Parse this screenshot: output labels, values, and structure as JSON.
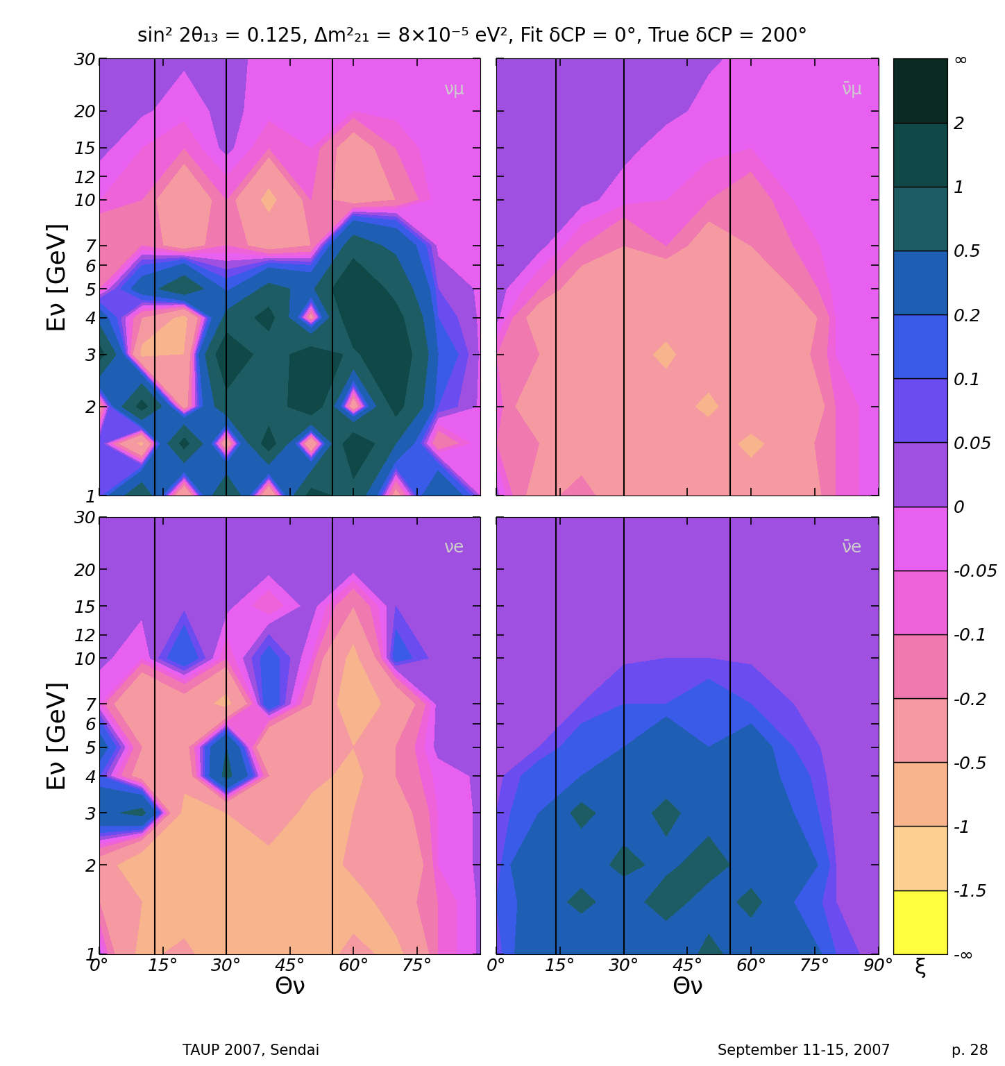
{
  "title": "sin² 2θ₁₃ = 0.125, Δm²₂₁ = 8×10⁻⁵ eV², Fit δCP = 0°, True δCP = 200°",
  "footer": {
    "left": "TAUP 2007, Sendai",
    "center": "September 11-15, 2007",
    "right": "p. 28"
  },
  "colorbar": {
    "label": "ξ",
    "levels": [
      -1.5,
      -1,
      -0.5,
      -0.2,
      -0.1,
      -0.05,
      0,
      0.05,
      0.1,
      0.2,
      0.5,
      1,
      2
    ],
    "end_labels": [
      "-∞",
      "∞"
    ],
    "colors": [
      "#ffff40",
      "#fbd090",
      "#f8b48c",
      "#f59aa0",
      "#f07ab0",
      "#ee64d8",
      "#e860f0",
      "#a050e0",
      "#6a4cf0",
      "#3a5ae8",
      "#1e5fb4",
      "#1e5c64",
      "#104848",
      "#0b2b22"
    ]
  },
  "chart_data": [
    {
      "type": "contour",
      "label": "νμ",
      "xlabel": null,
      "ylabel": "Eν [GeV]",
      "tick_labels": "y",
      "xlim": [
        0,
        90
      ],
      "ylim": [
        1,
        30
      ],
      "log": "y",
      "xticks": [
        {
          "value": 0,
          "label": "0°"
        },
        {
          "value": 15,
          "label": "15°"
        },
        {
          "value": 30,
          "label": "30°"
        },
        {
          "value": 45,
          "label": "45°"
        },
        {
          "value": 60,
          "label": "60°"
        },
        {
          "value": 75,
          "label": "75°"
        }
      ],
      "yticks": [
        1,
        2,
        3,
        4,
        5,
        6,
        7,
        10,
        12,
        15,
        20,
        30
      ],
      "vertical_lines": [
        13,
        30,
        55
      ],
      "x": [
        0,
        10,
        20,
        30,
        40,
        50,
        60,
        70,
        80,
        90
      ],
      "y": [
        1,
        1.5,
        2,
        3,
        4,
        5,
        7,
        10,
        15,
        20,
        30
      ],
      "cells": [
        [
          0.05,
          0.8,
          -0.5,
          1.0,
          -0.5,
          1.2,
          0.8,
          -0.3,
          0.5,
          -0.01
        ],
        [
          0.1,
          -0.6,
          1.2,
          -0.4,
          1.3,
          -0.5,
          1.5,
          0.5,
          -0.2,
          -0.01
        ],
        [
          -0.3,
          1.2,
          -0.3,
          0.8,
          0.6,
          1.5,
          -0.4,
          1.2,
          0.1,
          -0.01
        ],
        [
          1.2,
          -0.6,
          -0.5,
          1.5,
          0.7,
          1.3,
          0.9,
          1.5,
          0.2,
          -0.01
        ],
        [
          0.3,
          -0.2,
          -0.6,
          0.6,
          1.2,
          -0.3,
          1.5,
          1.2,
          0.1,
          -0.01
        ],
        [
          -0.1,
          0.3,
          0.8,
          0.15,
          0.6,
          0.4,
          1.6,
          0.8,
          0.05,
          -0.01
        ],
        [
          -0.2,
          -0.1,
          -0.3,
          -0.1,
          -0.3,
          -0.2,
          0.7,
          0.4,
          -0.02,
          -0.01
        ],
        [
          -0.05,
          -0.1,
          -0.4,
          -0.1,
          -0.6,
          -0.1,
          -0.3,
          -0.2,
          -0.02,
          -0.01
        ],
        [
          0.02,
          -0.05,
          -0.1,
          0.02,
          -0.1,
          -0.05,
          -0.3,
          -0.1,
          -0.01,
          -0.01
        ],
        [
          0.02,
          0.01,
          -0.03,
          0.02,
          -0.03,
          -0.02,
          -0.05,
          -0.03,
          -0.01,
          -0.01
        ],
        [
          0.02,
          0.02,
          0.01,
          0.02,
          -0.02,
          -0.02,
          -0.02,
          -0.01,
          -0.01,
          -0.01
        ]
      ]
    },
    {
      "type": "contour",
      "label": "ν̄μ",
      "xlabel": null,
      "ylabel": null,
      "tick_labels": false,
      "xlim": [
        0,
        90
      ],
      "ylim": [
        1,
        30
      ],
      "log": "y",
      "xticks": [
        {
          "value": 0,
          "label": "0°"
        },
        {
          "value": 15,
          "label": "15°"
        },
        {
          "value": 30,
          "label": "30°"
        },
        {
          "value": 45,
          "label": "45°"
        },
        {
          "value": 60,
          "label": "60°"
        },
        {
          "value": 75,
          "label": "75°"
        },
        {
          "value": 90,
          "label": "90°"
        }
      ],
      "yticks": [
        1,
        2,
        3,
        4,
        5,
        6,
        7,
        10,
        12,
        15,
        20,
        30
      ],
      "vertical_lines": [
        14,
        30,
        55
      ],
      "x": [
        0,
        10,
        20,
        30,
        40,
        50,
        60,
        70,
        80,
        90
      ],
      "y": [
        1,
        1.5,
        2,
        3,
        4,
        5,
        7,
        10,
        15,
        20,
        30
      ],
      "cells": [
        [
          0.02,
          -0.3,
          -0.1,
          -0.4,
          -0.2,
          -0.5,
          -0.3,
          -0.4,
          -0.1,
          -0.01
        ],
        [
          -0.1,
          -0.2,
          -0.4,
          -0.2,
          -0.5,
          -0.3,
          -0.6,
          -0.3,
          -0.1,
          -0.01
        ],
        [
          -0.05,
          -0.4,
          -0.2,
          -0.5,
          -0.3,
          -0.6,
          -0.2,
          -0.5,
          -0.1,
          -0.01
        ],
        [
          -0.1,
          -0.2,
          -0.5,
          -0.3,
          -0.6,
          -0.2,
          -0.5,
          -0.3,
          -0.05,
          -0.01
        ],
        [
          0.02,
          -0.3,
          -0.2,
          -0.4,
          -0.3,
          -0.5,
          -0.3,
          -0.4,
          -0.05,
          -0.01
        ],
        [
          0.03,
          -0.1,
          -0.3,
          -0.2,
          -0.4,
          -0.3,
          -0.4,
          -0.2,
          -0.03,
          -0.01
        ],
        [
          0.03,
          0.02,
          -0.1,
          -0.2,
          -0.1,
          -0.3,
          -0.2,
          -0.1,
          -0.02,
          -0.01
        ],
        [
          0.03,
          0.03,
          0.02,
          -0.03,
          -0.05,
          -0.1,
          -0.15,
          -0.05,
          -0.02,
          -0.01
        ],
        [
          0.03,
          0.03,
          0.02,
          0.02,
          -0.03,
          -0.03,
          -0.05,
          -0.03,
          -0.01,
          -0.01
        ],
        [
          0.03,
          0.03,
          0.02,
          0.02,
          0.02,
          -0.02,
          -0.03,
          -0.02,
          -0.01,
          -0.01
        ],
        [
          0.03,
          0.03,
          0.02,
          0.02,
          0.02,
          0.01,
          -0.02,
          -0.01,
          -0.01,
          -0.01
        ]
      ]
    },
    {
      "type": "contour",
      "label": "νe",
      "xlabel": "Θν",
      "ylabel": "Eν [GeV]",
      "tick_labels": true,
      "xlim": [
        0,
        90
      ],
      "ylim": [
        1,
        30
      ],
      "log": "y",
      "xticks": [
        {
          "value": 0,
          "label": "0°"
        },
        {
          "value": 15,
          "label": "15°"
        },
        {
          "value": 30,
          "label": "30°"
        },
        {
          "value": 45,
          "label": "45°"
        },
        {
          "value": 60,
          "label": "60°"
        },
        {
          "value": 75,
          "label": "75°"
        }
      ],
      "yticks": [
        1,
        2,
        3,
        4,
        5,
        6,
        7,
        10,
        12,
        15,
        20,
        30
      ],
      "vertical_lines": [
        13,
        30,
        55
      ],
      "x": [
        0,
        10,
        20,
        30,
        40,
        50,
        60,
        70,
        80,
        90
      ],
      "y": [
        1,
        1.5,
        2,
        3,
        4,
        5,
        7,
        10,
        15,
        20,
        30
      ],
      "cells": [
        [
          0.02,
          -0.6,
          -0.4,
          -0.8,
          -0.5,
          -0.7,
          -0.4,
          -0.6,
          -0.1,
          0.01
        ],
        [
          -0.2,
          -0.5,
          -0.8,
          -0.6,
          -0.9,
          -0.5,
          -0.7,
          -0.3,
          -0.1,
          0.01
        ],
        [
          -0.3,
          -0.8,
          -0.5,
          -0.7,
          -0.6,
          -0.8,
          -0.4,
          -0.5,
          -0.05,
          0.01
        ],
        [
          0.4,
          0.6,
          -0.6,
          -0.5,
          -0.3,
          -0.6,
          -0.5,
          -0.3,
          -0.05,
          0.01
        ],
        [
          0.1,
          -0.3,
          -0.4,
          0.6,
          -0.2,
          -0.4,
          -0.6,
          -0.2,
          -0.03,
          0.01
        ],
        [
          0.3,
          -0.2,
          -0.3,
          0.5,
          -0.5,
          -0.3,
          -0.5,
          -0.2,
          0.02,
          0.01
        ],
        [
          -0.05,
          -0.5,
          -0.3,
          -0.6,
          0.2,
          -0.2,
          -0.7,
          -0.4,
          0.02,
          0.01
        ],
        [
          0.02,
          -0.05,
          0.2,
          -0.1,
          0.15,
          -0.05,
          -0.6,
          0.15,
          0.02,
          0.01
        ],
        [
          0.03,
          0.02,
          0.03,
          0.02,
          -0.1,
          0.03,
          -0.2,
          0.05,
          0.02,
          0.01
        ],
        [
          0.03,
          0.03,
          0.03,
          0.02,
          0.02,
          0.02,
          0.02,
          0.02,
          0.01,
          0.01
        ],
        [
          0.03,
          0.03,
          0.03,
          0.02,
          0.02,
          0.02,
          0.02,
          0.02,
          0.01,
          0.01
        ]
      ]
    },
    {
      "type": "contour",
      "label": "ν̄e",
      "xlabel": "Θν",
      "ylabel": null,
      "tick_labels": "x",
      "xlim": [
        0,
        90
      ],
      "ylim": [
        1,
        30
      ],
      "log": "y",
      "xticks": [
        {
          "value": 0,
          "label": "0°"
        },
        {
          "value": 15,
          "label": "15°"
        },
        {
          "value": 30,
          "label": "30°"
        },
        {
          "value": 45,
          "label": "45°"
        },
        {
          "value": 60,
          "label": "60°"
        },
        {
          "value": 75,
          "label": "75°"
        },
        {
          "value": 90,
          "label": "90°"
        }
      ],
      "yticks": [
        1,
        2,
        3,
        4,
        5,
        6,
        7,
        10,
        12,
        15,
        20,
        30
      ],
      "vertical_lines": [
        14,
        30,
        55
      ],
      "x": [
        0,
        10,
        20,
        30,
        40,
        50,
        60,
        70,
        80,
        90
      ],
      "y": [
        1,
        1.5,
        2,
        3,
        4,
        5,
        7,
        10,
        15,
        20,
        30
      ],
      "cells": [
        [
          0.05,
          0.4,
          0.2,
          0.5,
          0.2,
          0.6,
          0.3,
          0.4,
          0.1,
          0.01
        ],
        [
          0.1,
          0.3,
          0.6,
          0.3,
          0.7,
          0.3,
          0.6,
          0.2,
          0.05,
          0.01
        ],
        [
          0.05,
          0.5,
          0.3,
          0.6,
          0.4,
          0.7,
          0.3,
          0.4,
          0.05,
          0.01
        ],
        [
          0.05,
          0.2,
          0.6,
          0.3,
          0.6,
          0.3,
          0.5,
          0.2,
          0.03,
          0.01
        ],
        [
          0.03,
          0.15,
          0.2,
          0.5,
          0.3,
          0.4,
          0.3,
          0.15,
          0.02,
          0.01
        ],
        [
          0.03,
          0.05,
          0.15,
          0.2,
          0.4,
          0.2,
          0.3,
          0.1,
          0.02,
          0.01
        ],
        [
          0.03,
          0.03,
          0.05,
          0.1,
          0.1,
          0.15,
          0.1,
          0.05,
          0.02,
          0.01
        ],
        [
          0.03,
          0.03,
          0.03,
          0.04,
          0.05,
          0.05,
          0.04,
          0.03,
          0.02,
          0.01
        ],
        [
          0.03,
          0.03,
          0.03,
          0.03,
          0.03,
          0.03,
          0.03,
          0.02,
          0.02,
          0.01
        ],
        [
          0.03,
          0.03,
          0.03,
          0.03,
          0.03,
          0.03,
          0.03,
          0.02,
          0.02,
          0.01
        ],
        [
          0.03,
          0.03,
          0.03,
          0.03,
          0.03,
          0.03,
          0.03,
          0.02,
          0.02,
          0.01
        ]
      ]
    }
  ]
}
